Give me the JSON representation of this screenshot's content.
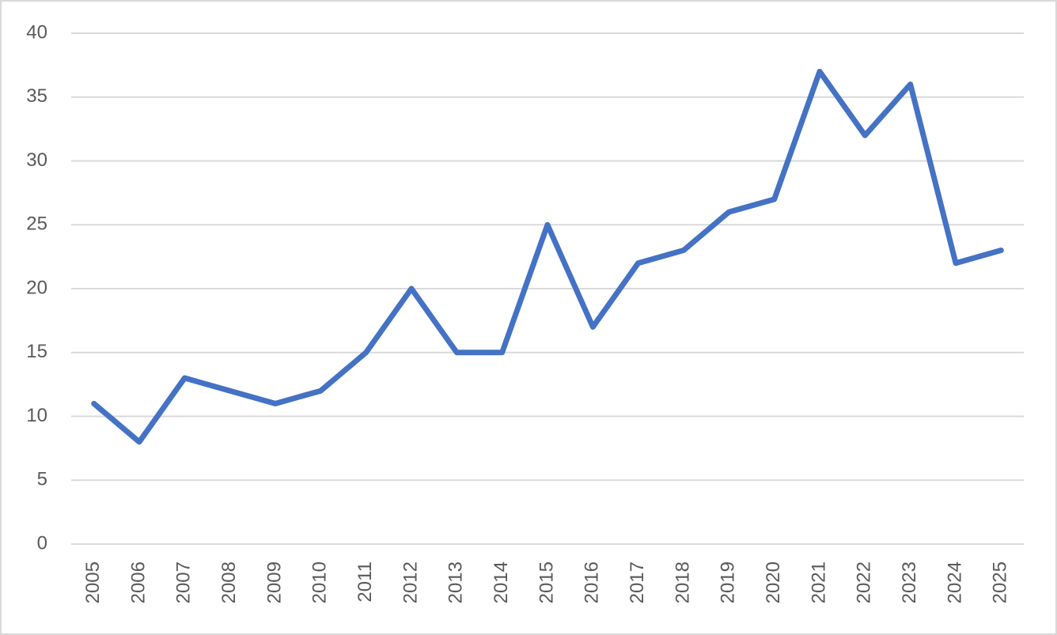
{
  "chart_data": {
    "type": "line",
    "categories": [
      "2005",
      "2006",
      "2007",
      "2008",
      "2009",
      "2010",
      "2011",
      "2012",
      "2013",
      "2014",
      "2015",
      "2016",
      "2017",
      "2018",
      "2019",
      "2020",
      "2021",
      "2022",
      "2023",
      "2024",
      "2025"
    ],
    "series": [
      {
        "color": "#4472c4",
        "values": [
          11,
          8,
          13,
          12,
          11,
          12,
          15,
          20,
          15,
          15,
          25,
          17,
          22,
          23,
          26,
          27,
          37,
          32,
          36,
          22,
          23
        ]
      }
    ],
    "ylim": [
      0,
      40
    ],
    "yticks": [
      0,
      5,
      10,
      15,
      20,
      25,
      30,
      35,
      40
    ],
    "grid": true
  }
}
